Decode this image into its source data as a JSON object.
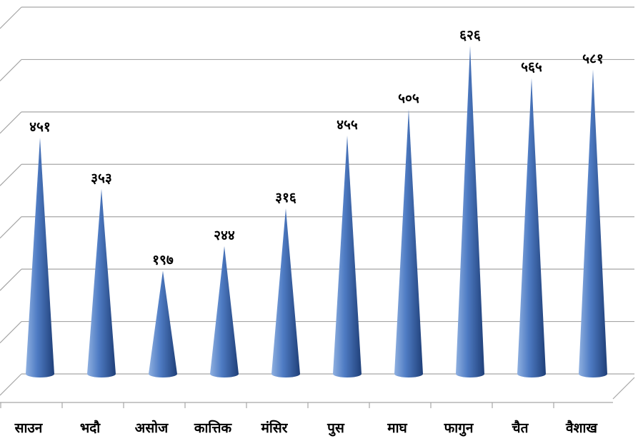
{
  "chart_data": {
    "type": "bar",
    "bar_shape": "cone",
    "categories": [
      "साउन",
      "भदौ",
      "असोज",
      "कात्तिक",
      "मंसिर",
      "पुस",
      "माघ",
      "फागुन",
      "चैत",
      "वैशाख"
    ],
    "values": [
      451,
      353,
      197,
      244,
      316,
      455,
      505,
      626,
      565,
      581
    ],
    "data_labels": [
      "४५१",
      "३५३",
      "१९७",
      "२४४",
      "३१६",
      "४५५",
      "५०५",
      "६२६",
      "५६५",
      "५८१"
    ],
    "ylim": [
      0,
      700
    ],
    "y_gridline_step": 100,
    "grid": true,
    "legend": "none",
    "colors": {
      "cone_light": "#8fb0e0",
      "cone_mid": "#4f7cc4",
      "cone_dark": "#1f3f78",
      "grid": "#a6a6a6",
      "text": "#000000"
    }
  }
}
